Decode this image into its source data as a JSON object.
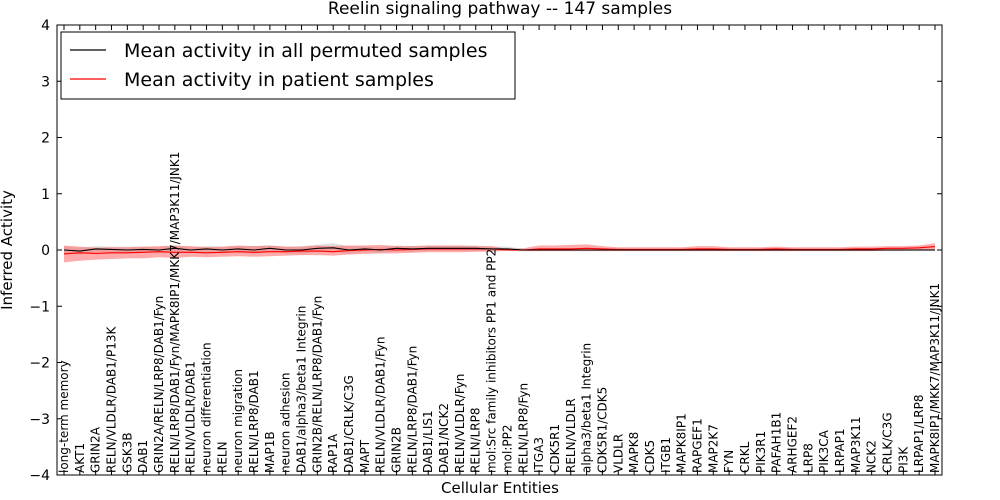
{
  "chart_data": {
    "type": "line",
    "title": "Reelin signaling pathway -- 147 samples",
    "xlabel": "Cellular Entities",
    "ylabel": "Inferred Activity",
    "ylim": [
      -4,
      4
    ],
    "yticks": [
      "4",
      "3",
      "2",
      "1",
      "0",
      "−1",
      "−2",
      "−3",
      "−4"
    ],
    "grid": false,
    "legend_position": "top-left",
    "categories": [
      "long-term memory",
      "AKT1",
      "GRIN2A",
      "RELN/VLDLR/DAB1/P13K",
      "GSK3B",
      "DAB1",
      "GRIN2A/RELN/LRP8/DAB1/Fyn",
      "RELN/LRP8/DAB1/Fyn/MAPK8IP1/MKK7/MAP3K11/JNK1",
      "RELN/VLDLR/DAB1",
      "neuron differentiation",
      "RELN",
      "neuron migration",
      "RELN/LRP8/DAB1",
      "MAP1B",
      "neuron adhesion",
      "DAB1/alpha3/beta1 Integrin",
      "GRIN2B/RELN/LRP8/DAB1/Fyn",
      "RAP1A",
      "DAB1/CRLK/C3G",
      "MAPT",
      "RELN/VLDLR/DAB1/Fyn",
      "GRIN2B",
      "RELN/LRP8/DAB1/Fyn",
      "DAB1/LIS1",
      "DAB1/NCK2",
      "RELN/VLDLR/Fyn",
      "RELN/LRP8",
      "mol:Src family inhibitors PP1 and PP2",
      "mol:PP2",
      "RELN/LRP8/Fyn",
      "ITGA3",
      "CDK5R1",
      "RELN/VLDLR",
      "alpha3/beta1 Integrin",
      "CDK5R1/CDK5",
      "VLDLR",
      "MAPK8",
      "CDK5",
      "ITGB1",
      "MAPK8IP1",
      "RAPGEF1",
      "MAP2K7",
      "FYN",
      "CRKL",
      "PIK3R1",
      "PAFAH1B1",
      "ARHGEF2",
      "LRP8",
      "PIK3CA",
      "LRPAP1",
      "MAP3K11",
      "NCK2",
      "CRLK/C3G",
      "PI3K",
      "LRPAP1/LRP8",
      "MAPK8IP1/MKK7/MAP3K11/JNK1"
    ],
    "series": [
      {
        "name": "Mean activity in all permuted samples",
        "color": "#000000",
        "values": [
          0.0,
          -0.02,
          0.02,
          0.01,
          0.0,
          0.01,
          0.0,
          0.03,
          0.0,
          0.02,
          0.0,
          0.02,
          0.0,
          0.03,
          0.0,
          0.0,
          0.03,
          0.04,
          0.0,
          0.02,
          0.0,
          0.03,
          0.02,
          0.03,
          0.03,
          0.03,
          0.03,
          0.02,
          0.02,
          0.0,
          0.0,
          0.0,
          0.0,
          0.0,
          0.0,
          0.0,
          0.0,
          0.0,
          0.0,
          0.0,
          0.0,
          0.0,
          0.0,
          0.0,
          0.0,
          0.0,
          0.0,
          0.0,
          0.0,
          0.0,
          0.0,
          0.0,
          0.0,
          0.0,
          0.0,
          0.0
        ],
        "band_lower": [
          -0.06,
          -0.08,
          -0.03,
          -0.04,
          -0.06,
          -0.04,
          -0.05,
          -0.02,
          -0.05,
          -0.03,
          -0.06,
          -0.03,
          -0.07,
          -0.02,
          -0.06,
          -0.07,
          -0.03,
          -0.02,
          -0.07,
          -0.03,
          -0.05,
          -0.02,
          -0.03,
          -0.02,
          -0.02,
          -0.02,
          -0.02,
          -0.02,
          -0.02,
          -0.02,
          -0.02,
          -0.02,
          -0.02,
          -0.02,
          -0.02,
          -0.02,
          -0.02,
          -0.02,
          -0.02,
          -0.02,
          -0.02,
          -0.02,
          -0.02,
          -0.02,
          -0.02,
          -0.02,
          -0.02,
          -0.02,
          -0.02,
          -0.02,
          -0.02,
          -0.02,
          -0.02,
          -0.02,
          -0.02,
          -0.02
        ],
        "band_upper": [
          0.06,
          0.04,
          0.07,
          0.06,
          0.06,
          0.06,
          0.05,
          0.08,
          0.05,
          0.07,
          0.06,
          0.07,
          0.07,
          0.08,
          0.06,
          0.07,
          0.09,
          0.12,
          0.07,
          0.07,
          0.05,
          0.08,
          0.07,
          0.08,
          0.08,
          0.08,
          0.08,
          0.06,
          0.06,
          0.02,
          0.02,
          0.02,
          0.02,
          0.02,
          0.02,
          0.02,
          0.02,
          0.02,
          0.02,
          0.02,
          0.02,
          0.02,
          0.02,
          0.02,
          0.02,
          0.02,
          0.02,
          0.02,
          0.02,
          0.02,
          0.02,
          0.02,
          0.02,
          0.02,
          0.02,
          0.02
        ]
      },
      {
        "name": "Mean activity in patient samples",
        "color": "#ff0000",
        "values": [
          -0.07,
          -0.05,
          -0.06,
          -0.05,
          -0.05,
          -0.04,
          -0.03,
          -0.04,
          -0.04,
          -0.05,
          -0.04,
          -0.03,
          -0.04,
          -0.03,
          -0.03,
          -0.02,
          -0.02,
          -0.03,
          -0.01,
          0.0,
          0.01,
          0.0,
          0.01,
          0.02,
          0.02,
          0.02,
          0.02,
          0.02,
          0.0,
          0.0,
          0.02,
          0.02,
          0.02,
          0.03,
          0.02,
          0.01,
          0.01,
          0.01,
          0.01,
          0.01,
          0.02,
          0.02,
          0.01,
          0.01,
          0.01,
          0.02,
          0.01,
          0.01,
          0.01,
          0.01,
          0.02,
          0.02,
          0.03,
          0.03,
          0.04,
          0.06
        ],
        "band_lower": [
          -0.22,
          -0.19,
          -0.17,
          -0.16,
          -0.15,
          -0.15,
          -0.13,
          -0.14,
          -0.12,
          -0.13,
          -0.12,
          -0.11,
          -0.12,
          -0.11,
          -0.1,
          -0.09,
          -0.09,
          -0.1,
          -0.08,
          -0.07,
          -0.06,
          -0.06,
          -0.05,
          -0.04,
          -0.04,
          -0.04,
          -0.03,
          -0.03,
          -0.01,
          -0.02,
          -0.02,
          -0.02,
          -0.02,
          -0.02,
          -0.02,
          -0.02,
          -0.02,
          -0.02,
          -0.02,
          -0.02,
          -0.02,
          -0.02,
          -0.02,
          -0.02,
          -0.02,
          -0.02,
          -0.02,
          -0.02,
          -0.02,
          -0.02,
          -0.02,
          -0.02,
          -0.01,
          -0.01,
          0.0,
          0.0
        ],
        "band_upper": [
          0.08,
          0.06,
          0.04,
          0.05,
          0.05,
          0.06,
          0.07,
          0.08,
          0.07,
          0.05,
          0.06,
          0.08,
          0.07,
          0.08,
          0.06,
          0.06,
          0.08,
          0.07,
          0.08,
          0.08,
          0.09,
          0.07,
          0.07,
          0.08,
          0.08,
          0.08,
          0.07,
          0.07,
          0.02,
          0.03,
          0.08,
          0.08,
          0.09,
          0.1,
          0.07,
          0.05,
          0.05,
          0.05,
          0.05,
          0.05,
          0.07,
          0.07,
          0.05,
          0.05,
          0.05,
          0.06,
          0.05,
          0.05,
          0.05,
          0.05,
          0.06,
          0.06,
          0.07,
          0.07,
          0.08,
          0.12
        ]
      }
    ],
    "colors": {
      "permuted_band": "#c8c8c8",
      "patient_band": "#ff6666"
    }
  }
}
